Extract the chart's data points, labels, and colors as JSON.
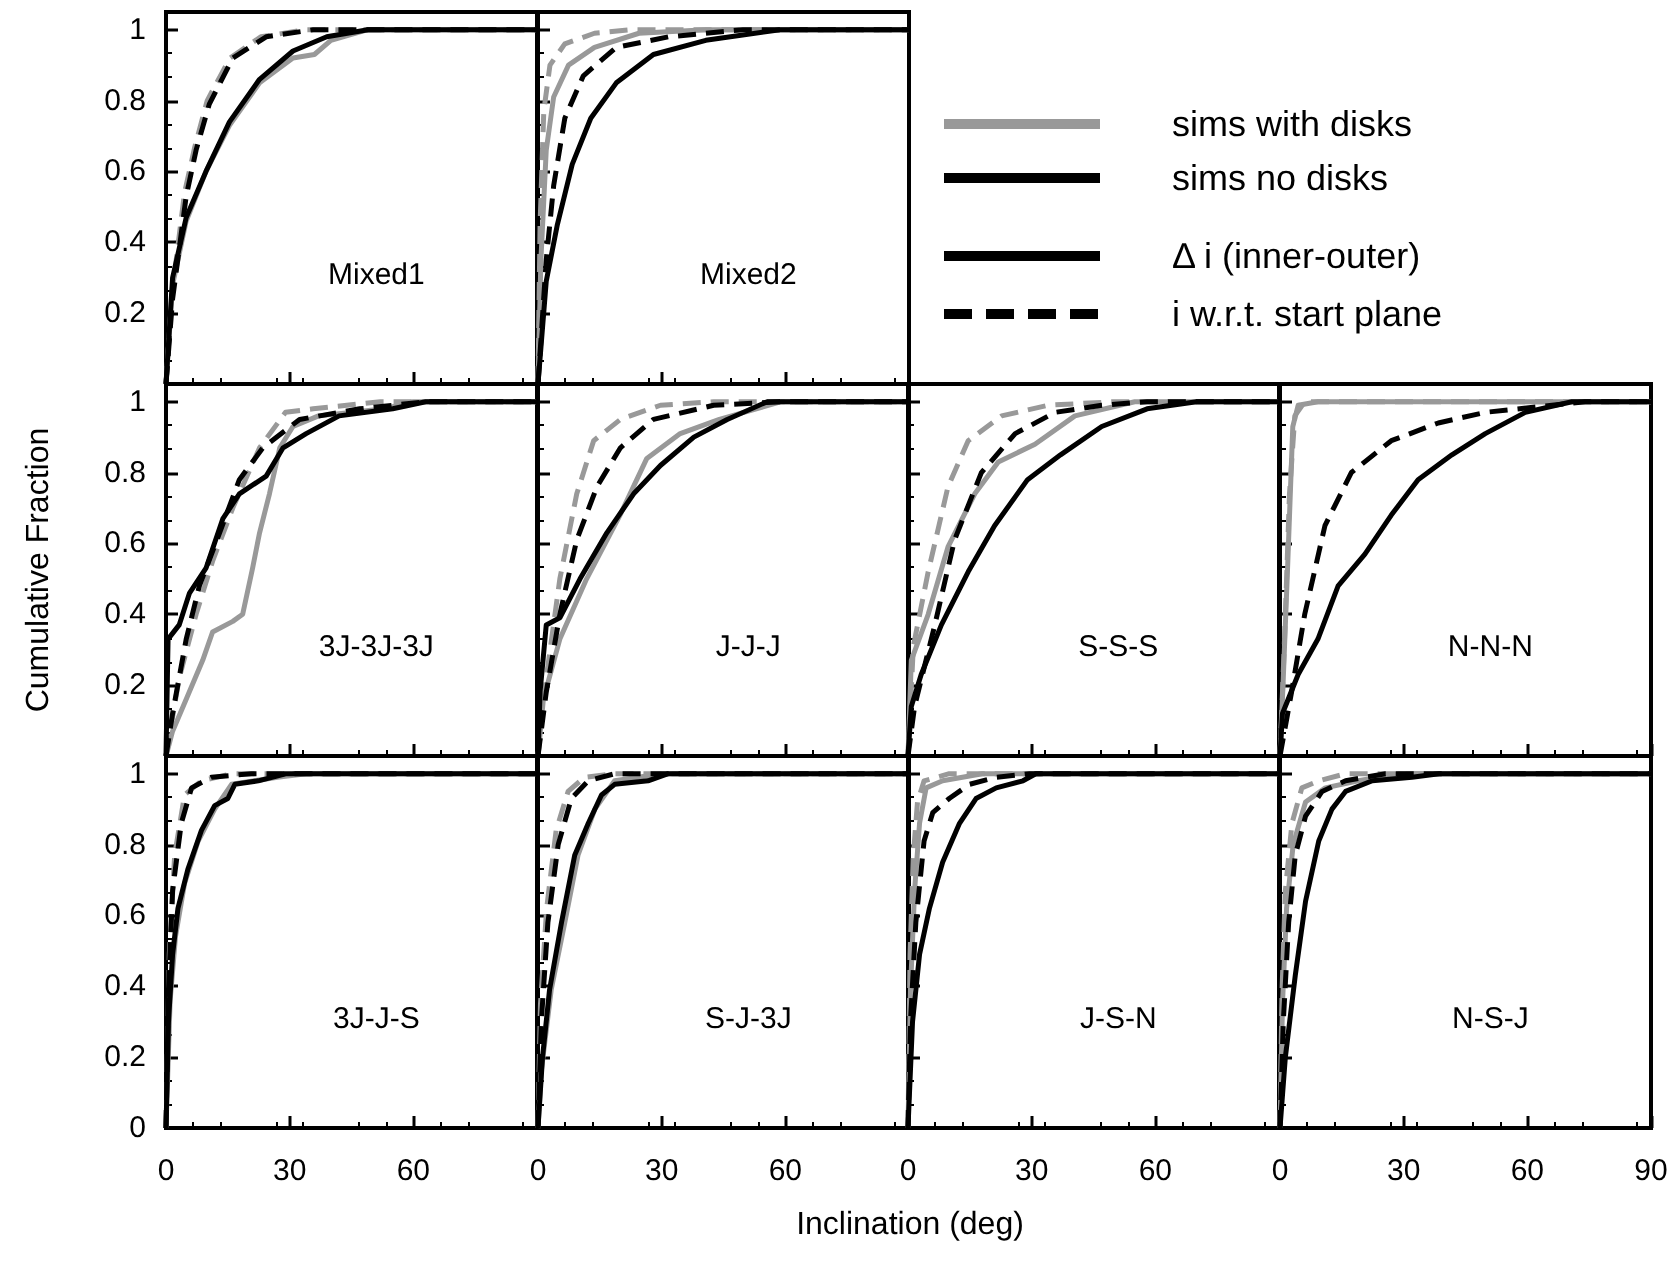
{
  "chart_data": [
    {
      "type": "line",
      "title": "Mixed1",
      "xlim": [
        0,
        90
      ],
      "xticks": [
        0,
        30,
        60
      ],
      "ylim": [
        0,
        1.05
      ],
      "yticks": [
        0.2,
        0.4,
        0.6,
        0.8,
        1
      ],
      "tick_labels": "y",
      "series": [
        {
          "color": "#999999",
          "line_style": "solid",
          "x": [
            0,
            1.6,
            4.9,
            9.7,
            15.4,
            22.7,
            30.8,
            36,
            40,
            49,
            90
          ],
          "values": [
            0,
            0.28,
            0.46,
            0.6,
            0.73,
            0.85,
            0.92,
            0.93,
            0.97,
            1,
            1
          ]
        },
        {
          "color": "#999999",
          "line_style": "dashed",
          "x": [
            0,
            1.4,
            4.5,
            7,
            10,
            15.5,
            23,
            34,
            90
          ],
          "values": [
            0,
            0.25,
            0.54,
            0.67,
            0.8,
            0.92,
            0.98,
            1,
            1
          ]
        },
        {
          "color": "#000000",
          "line_style": "solid",
          "x": [
            0,
            1.6,
            4.9,
            9.7,
            15.4,
            22.7,
            30.8,
            39,
            49,
            90
          ],
          "values": [
            0,
            0.3,
            0.47,
            0.6,
            0.74,
            0.86,
            0.94,
            0.98,
            1,
            1
          ]
        },
        {
          "color": "#000000",
          "line_style": "dashed",
          "x": [
            0,
            1.6,
            4.9,
            7.3,
            10.5,
            16.2,
            24.3,
            35.7,
            90
          ],
          "values": [
            0,
            0.24,
            0.53,
            0.66,
            0.79,
            0.92,
            0.98,
            1,
            1
          ]
        }
      ]
    },
    {
      "type": "line",
      "title": "Mixed2",
      "xlim": [
        0,
        90
      ],
      "xticks": [
        0,
        30,
        60
      ],
      "ylim": [
        0,
        1.05
      ],
      "yticks": [
        0.2,
        0.4,
        0.6,
        0.8,
        1
      ],
      "tick_labels": false,
      "series": [
        {
          "color": "#999999",
          "line_style": "solid",
          "x": [
            0,
            0.7,
            2,
            3.8,
            7.4,
            13.7,
            24.5,
            40.7,
            90
          ],
          "values": [
            0,
            0.35,
            0.66,
            0.81,
            0.9,
            0.95,
            0.99,
            1,
            1
          ]
        },
        {
          "color": "#999999",
          "line_style": "dashed",
          "x": [
            0,
            0.5,
            1.4,
            2.9,
            6.5,
            13.7,
            22.7,
            90
          ],
          "values": [
            0,
            0.45,
            0.77,
            0.9,
            0.96,
            0.99,
            1,
            1
          ]
        },
        {
          "color": "#000000",
          "line_style": "solid",
          "x": [
            0,
            2,
            4.7,
            8.3,
            12.8,
            19,
            28,
            40.7,
            58.7,
            90
          ],
          "values": [
            0,
            0.29,
            0.45,
            0.62,
            0.75,
            0.85,
            0.93,
            0.97,
            1,
            1
          ]
        },
        {
          "color": "#000000",
          "line_style": "dashed",
          "x": [
            0,
            2,
            3.8,
            6.5,
            11,
            19,
            31.7,
            49.7,
            90
          ],
          "values": [
            0,
            0.35,
            0.56,
            0.75,
            0.87,
            0.95,
            0.98,
            1,
            1
          ]
        }
      ]
    },
    {
      "type": "line",
      "title": "3J-3J-3J",
      "xlim": [
        0,
        90
      ],
      "xticks": [
        0,
        30,
        60
      ],
      "ylim": [
        0,
        1.05
      ],
      "yticks": [
        0.2,
        0.4,
        0.6,
        0.8,
        1
      ],
      "tick_labels": "y",
      "series": [
        {
          "color": "#999999",
          "line_style": "solid",
          "x": [
            0,
            1.6,
            4.9,
            8.9,
            11.3,
            16.2,
            18.6,
            21,
            22.7,
            25.1,
            27.6,
            30.8,
            37,
            53,
            60,
            90
          ],
          "values": [
            0,
            0.07,
            0.16,
            0.27,
            0.35,
            0.38,
            0.4,
            0.53,
            0.63,
            0.74,
            0.87,
            0.93,
            0.96,
            0.98,
            1,
            1
          ]
        },
        {
          "color": "#999999",
          "line_style": "dashed",
          "x": [
            0,
            3.2,
            7.3,
            11.3,
            16.2,
            22.7,
            29,
            35.7,
            52,
            90
          ],
          "values": [
            0,
            0.22,
            0.4,
            0.55,
            0.7,
            0.87,
            0.97,
            0.98,
            1,
            1
          ]
        },
        {
          "color": "#000000",
          "line_style": "solid",
          "x": [
            0,
            0.5,
            3.2,
            5.7,
            9.7,
            13.8,
            17.8,
            24.3,
            28.4,
            34,
            42,
            55,
            63,
            90
          ],
          "values": [
            0,
            0.33,
            0.37,
            0.46,
            0.53,
            0.67,
            0.74,
            0.79,
            0.87,
            0.91,
            0.96,
            0.98,
            1,
            1
          ]
        },
        {
          "color": "#000000",
          "line_style": "dashed",
          "x": [
            0,
            1.6,
            4.9,
            8.1,
            13,
            17.8,
            23.5,
            32.4,
            47,
            63,
            90
          ],
          "values": [
            0,
            0.12,
            0.33,
            0.48,
            0.63,
            0.78,
            0.87,
            0.95,
            0.98,
            1,
            1
          ]
        }
      ]
    },
    {
      "type": "line",
      "title": "J-J-J",
      "xlim": [
        0,
        90
      ],
      "xticks": [
        0,
        30,
        60
      ],
      "ylim": [
        0,
        1.05
      ],
      "yticks": [
        0.2,
        0.4,
        0.6,
        0.8,
        1
      ],
      "tick_labels": false,
      "series": [
        {
          "color": "#999999",
          "line_style": "solid",
          "x": [
            0,
            1.3,
            5.3,
            11.8,
            19.9,
            26.4,
            34.5,
            44,
            59,
            90
          ],
          "values": [
            0,
            0.16,
            0.33,
            0.5,
            0.68,
            0.84,
            0.91,
            0.95,
            1,
            1
          ]
        },
        {
          "color": "#999999",
          "line_style": "dashed",
          "x": [
            0,
            2,
            5.3,
            9.4,
            13.5,
            20,
            29.7,
            42.6,
            90
          ],
          "values": [
            0,
            0.22,
            0.5,
            0.74,
            0.89,
            0.95,
            0.99,
            1,
            1
          ]
        },
        {
          "color": "#000000",
          "line_style": "solid",
          "x": [
            0,
            0.5,
            2,
            5.3,
            10.2,
            16.7,
            23.2,
            29.7,
            37.8,
            45.9,
            55.6,
            90
          ],
          "values": [
            0,
            0.18,
            0.37,
            0.39,
            0.5,
            0.63,
            0.74,
            0.82,
            0.9,
            0.95,
            1,
            1
          ]
        },
        {
          "color": "#000000",
          "line_style": "dashed",
          "x": [
            0,
            2,
            5.3,
            9.4,
            14.3,
            20,
            28,
            42.6,
            59,
            90
          ],
          "values": [
            0,
            0.18,
            0.4,
            0.61,
            0.76,
            0.87,
            0.95,
            0.99,
            1,
            1
          ]
        }
      ]
    },
    {
      "type": "line",
      "title": "S-S-S",
      "xlim": [
        0,
        90
      ],
      "xticks": [
        0,
        30,
        60
      ],
      "ylim": [
        0,
        1.05
      ],
      "yticks": [
        0.2,
        0.4,
        0.6,
        0.8,
        1
      ],
      "tick_labels": false,
      "series": [
        {
          "color": "#999999",
          "line_style": "solid",
          "x": [
            0,
            0.8,
            4.9,
            9.7,
            16.2,
            21.9,
            30.8,
            40.5,
            55,
            90
          ],
          "values": [
            0,
            0.27,
            0.4,
            0.59,
            0.74,
            0.83,
            0.88,
            0.96,
            1,
            1
          ]
        },
        {
          "color": "#999999",
          "line_style": "dashed",
          "x": [
            0,
            1.3,
            4.9,
            9.7,
            14.6,
            22.7,
            34,
            50,
            90
          ],
          "values": [
            0,
            0.31,
            0.52,
            0.76,
            0.89,
            0.96,
            0.99,
            1,
            1
          ]
        },
        {
          "color": "#000000",
          "line_style": "solid",
          "x": [
            0,
            0.8,
            3.2,
            8.1,
            14.6,
            21,
            29,
            37,
            47,
            58,
            70,
            90
          ],
          "values": [
            0,
            0.14,
            0.23,
            0.37,
            0.52,
            0.65,
            0.78,
            0.85,
            0.93,
            0.98,
            1,
            1
          ]
        },
        {
          "color": "#000000",
          "line_style": "dashed",
          "x": [
            0,
            1.6,
            6.5,
            11.3,
            17.8,
            26,
            35.7,
            47,
            58,
            90
          ],
          "values": [
            0,
            0.14,
            0.37,
            0.61,
            0.8,
            0.91,
            0.97,
            0.99,
            1,
            1
          ]
        }
      ]
    },
    {
      "type": "line",
      "title": "N-N-N",
      "xlim": [
        0,
        90
      ],
      "xticks": [
        0,
        30,
        60,
        90
      ],
      "ylim": [
        0,
        1.05
      ],
      "yticks": [
        0.2,
        0.4,
        0.6,
        0.8,
        1
      ],
      "tick_labels": false,
      "series": [
        {
          "color": "#999999",
          "line_style": "solid",
          "x": [
            0,
            0.8,
            1.9,
            3.1,
            4.4,
            9.2,
            90
          ],
          "values": [
            0,
            0.22,
            0.55,
            0.93,
            0.99,
            1,
            1
          ]
        },
        {
          "color": "#999999",
          "line_style": "dashed",
          "x": [
            0,
            1.1,
            2.3,
            3.6,
            6,
            90
          ],
          "values": [
            0,
            0.33,
            0.74,
            0.96,
            1,
            1
          ]
        },
        {
          "color": "#000000",
          "line_style": "solid",
          "x": [
            0,
            0.6,
            4.4,
            9.2,
            14.1,
            20.6,
            27,
            33.5,
            41.7,
            49.8,
            59.5,
            70.8,
            90
          ],
          "values": [
            0,
            0.12,
            0.23,
            0.33,
            0.48,
            0.57,
            0.68,
            0.78,
            0.85,
            0.91,
            0.97,
            1,
            1
          ]
        },
        {
          "color": "#000000",
          "line_style": "dashed",
          "x": [
            0,
            2.8,
            6,
            10.9,
            17.3,
            27,
            38.4,
            49.8,
            66,
            74,
            90
          ],
          "values": [
            0,
            0.18,
            0.4,
            0.65,
            0.8,
            0.89,
            0.94,
            0.97,
            0.99,
            1,
            1
          ]
        }
      ]
    },
    {
      "type": "line",
      "title": "3J-J-S",
      "xlim": [
        0,
        90
      ],
      "xticks": [
        0,
        30,
        60
      ],
      "ylim": [
        0,
        1.05
      ],
      "yticks": [
        0,
        0.2,
        0.4,
        0.6,
        0.8,
        1
      ],
      "series": [
        {
          "color": "#999999",
          "line_style": "solid",
          "x": [
            0,
            1,
            2.3,
            4.5,
            7.8,
            11.8,
            15.9,
            27,
            34,
            90
          ],
          "values": [
            0,
            0.36,
            0.54,
            0.69,
            0.81,
            0.9,
            0.97,
            0.99,
            1,
            1
          ]
        },
        {
          "color": "#999999",
          "line_style": "dashed",
          "x": [
            0,
            0.8,
            2.1,
            4.5,
            8.6,
            15.9,
            90
          ],
          "values": [
            0,
            0.49,
            0.77,
            0.94,
            0.98,
            1,
            1
          ]
        },
        {
          "color": "#000000",
          "line_style": "solid",
          "x": [
            0,
            0.6,
            1.6,
            2.9,
            5.3,
            8.6,
            11.8,
            15,
            16.7,
            22.4,
            29,
            90
          ],
          "values": [
            0,
            0.3,
            0.49,
            0.62,
            0.73,
            0.84,
            0.91,
            0.93,
            0.97,
            0.98,
            1,
            1
          ]
        },
        {
          "color": "#000000",
          "line_style": "dashed",
          "x": [
            0,
            0.6,
            1.6,
            3.7,
            6.2,
            11,
            20.7,
            90
          ],
          "values": [
            0,
            0.39,
            0.67,
            0.86,
            0.96,
            0.99,
            1,
            1
          ]
        }
      ]
    },
    {
      "type": "line",
      "title": "S-J-3J",
      "xlim": [
        0,
        90
      ],
      "xticks": [
        0,
        30,
        60
      ],
      "ylim": [
        0,
        1.05
      ],
      "yticks": [
        0,
        0.2,
        0.4,
        0.6,
        0.8,
        1
      ],
      "tick_labels": "x",
      "series": [
        {
          "color": "#999999",
          "line_style": "solid",
          "x": [
            0,
            0.8,
            3.2,
            6.5,
            9.7,
            13.8,
            18.6,
            30,
            90
          ],
          "values": [
            0,
            0.16,
            0.39,
            0.58,
            0.77,
            0.9,
            0.98,
            1,
            1
          ]
        },
        {
          "color": "#999999",
          "line_style": "dashed",
          "x": [
            0,
            0.6,
            2.1,
            4.4,
            7.3,
            11.3,
            18.6,
            90
          ],
          "values": [
            0,
            0.35,
            0.62,
            0.84,
            0.95,
            0.99,
            1,
            1
          ]
        },
        {
          "color": "#000000",
          "line_style": "solid",
          "x": [
            0,
            1.1,
            2.8,
            5.7,
            8.9,
            12.2,
            15.4,
            18.6,
            26.7,
            31.6,
            90
          ],
          "values": [
            0,
            0.2,
            0.39,
            0.58,
            0.77,
            0.86,
            0.94,
            0.97,
            0.98,
            1,
            1
          ]
        },
        {
          "color": "#000000",
          "line_style": "dashed",
          "x": [
            0,
            0.8,
            2.4,
            4.9,
            8.1,
            12.2,
            18.6,
            90
          ],
          "values": [
            0,
            0.3,
            0.58,
            0.8,
            0.93,
            0.98,
            1,
            1
          ]
        }
      ]
    },
    {
      "type": "line",
      "title": "J-S-N",
      "xlim": [
        0,
        90
      ],
      "xticks": [
        0,
        30,
        60
      ],
      "ylim": [
        0,
        1.05
      ],
      "yticks": [
        0,
        0.2,
        0.4,
        0.6,
        0.8,
        1
      ],
      "tick_labels": "x",
      "series": [
        {
          "color": "#999999",
          "line_style": "solid",
          "x": [
            0,
            0.6,
            1.6,
            2.8,
            4.4,
            8.4,
            18,
            90
          ],
          "values": [
            0,
            0.39,
            0.67,
            0.86,
            0.96,
            0.98,
            1,
            1
          ]
        },
        {
          "color": "#999999",
          "line_style": "dashed",
          "x": [
            0,
            0.5,
            1.3,
            2.3,
            3.9,
            10,
            90
          ],
          "values": [
            0,
            0.49,
            0.77,
            0.92,
            0.98,
            1,
            1
          ]
        },
        {
          "color": "#000000",
          "line_style": "solid",
          "x": [
            0,
            1.1,
            2.8,
            5.2,
            8.4,
            12.5,
            16.5,
            21.4,
            27.9,
            31,
            90
          ],
          "values": [
            0,
            0.3,
            0.49,
            0.62,
            0.75,
            0.86,
            0.93,
            0.96,
            0.98,
            1,
            1
          ]
        },
        {
          "color": "#000000",
          "line_style": "dashed",
          "x": [
            0,
            0.6,
            1.9,
            3.9,
            6,
            10,
            14.9,
            21.4,
            29.5,
            90
          ],
          "values": [
            0,
            0.3,
            0.58,
            0.81,
            0.89,
            0.93,
            0.97,
            0.99,
            1,
            1
          ]
        }
      ]
    },
    {
      "type": "line",
      "title": "N-S-J",
      "xlim": [
        0,
        90
      ],
      "xticks": [
        0,
        30,
        60,
        90
      ],
      "ylim": [
        0,
        1.05
      ],
      "yticks": [
        0,
        0.2,
        0.4,
        0.6,
        0.8,
        1
      ],
      "tick_labels": "x",
      "series": [
        {
          "color": "#999999",
          "line_style": "solid",
          "x": [
            0,
            0.6,
            1.6,
            3.2,
            6.2,
            11,
            19,
            28.8,
            90
          ],
          "values": [
            0,
            0.35,
            0.62,
            0.8,
            0.92,
            0.96,
            0.98,
            1,
            1
          ]
        },
        {
          "color": "#999999",
          "line_style": "dashed",
          "x": [
            0,
            0.5,
            1.3,
            2.9,
            5.3,
            9.4,
            15.9,
            90
          ],
          "values": [
            0,
            0.39,
            0.67,
            0.86,
            0.96,
            0.98,
            1,
            1
          ]
        },
        {
          "color": "#000000",
          "line_style": "solid",
          "x": [
            0,
            1.3,
            3.7,
            6.2,
            9.4,
            12.6,
            15.9,
            22.4,
            32,
            38.6,
            90
          ],
          "values": [
            0,
            0.2,
            0.43,
            0.64,
            0.81,
            0.9,
            0.95,
            0.98,
            0.99,
            1,
            1
          ]
        },
        {
          "color": "#000000",
          "line_style": "dashed",
          "x": [
            0,
            0.8,
            2.1,
            3.7,
            6.2,
            10.2,
            15.9,
            25.6,
            90
          ],
          "values": [
            0,
            0.3,
            0.58,
            0.77,
            0.88,
            0.95,
            0.98,
            1,
            1
          ]
        }
      ]
    },
    {
      "type": "other",
      "xlabel": "Inclination (deg)",
      "ylabel": "Cumulative Fraction",
      "legend": "top right",
      "series": [
        {
          "name": "sims with disks",
          "color": "#999999",
          "line_style": "solid"
        },
        {
          "name": "sims no disks",
          "color": "#000000",
          "line_style": "solid"
        },
        {
          "name": "Δ i (inner-outer)",
          "color": "#000000",
          "line_style": "solid"
        },
        {
          "name": "i w.r.t. start plane",
          "color": "#000000",
          "line_style": "dashed"
        }
      ]
    }
  ]
}
